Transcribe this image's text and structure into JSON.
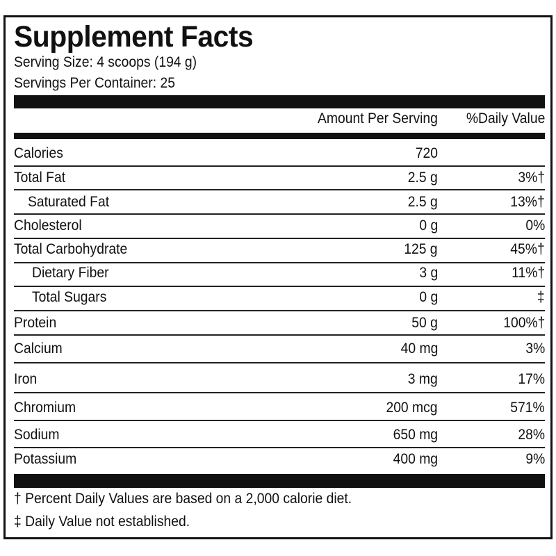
{
  "header": {
    "title": "Supplement Facts",
    "serving_size": "Serving Size: 4 scoops (194 g)",
    "servings_per_container": "Servings Per Container: 25"
  },
  "table": {
    "columns": [
      "Amount Per Serving",
      "%Daily Value"
    ],
    "rows": [
      {
        "name": "Calories",
        "amount": "720"
      },
      {
        "name": "Total Fat",
        "amount": "2.5 g",
        "dv": "3%†"
      },
      {
        "name": "Saturated Fat",
        "amount": "2.5 g",
        "dv": "13%†"
      },
      {
        "name": "Cholesterol",
        "amount": "0 g",
        "dv": "0%"
      },
      {
        "name": "Total Carbohydrate",
        "amount": "125 g",
        "dv": "45%†"
      },
      {
        "name": "Dietary Fiber",
        "amount": "3 g",
        "dv": "11%†"
      },
      {
        "name": "Total Sugars",
        "amount": "0 g",
        "dv": "‡"
      },
      {
        "name": "Protein",
        "amount": "50 g",
        "dv": "100%†"
      },
      {
        "name": "Calcium",
        "amount": "40 mg",
        "dv": "3%"
      },
      {
        "name": "Iron",
        "amount": "3 mg",
        "dv": "17%"
      },
      {
        "name": "Chromium",
        "amount": "200 mcg",
        "dv": "571%"
      },
      {
        "name": "Sodium",
        "amount": "650 mg",
        "dv": "28%"
      },
      {
        "name": "Potassium",
        "amount": "400 mg",
        "dv": "9%"
      }
    ]
  },
  "footnotes": [
    "† Percent Daily Values are based on a 2,000 calorie diet.",
    "‡ Daily Value not established."
  ]
}
